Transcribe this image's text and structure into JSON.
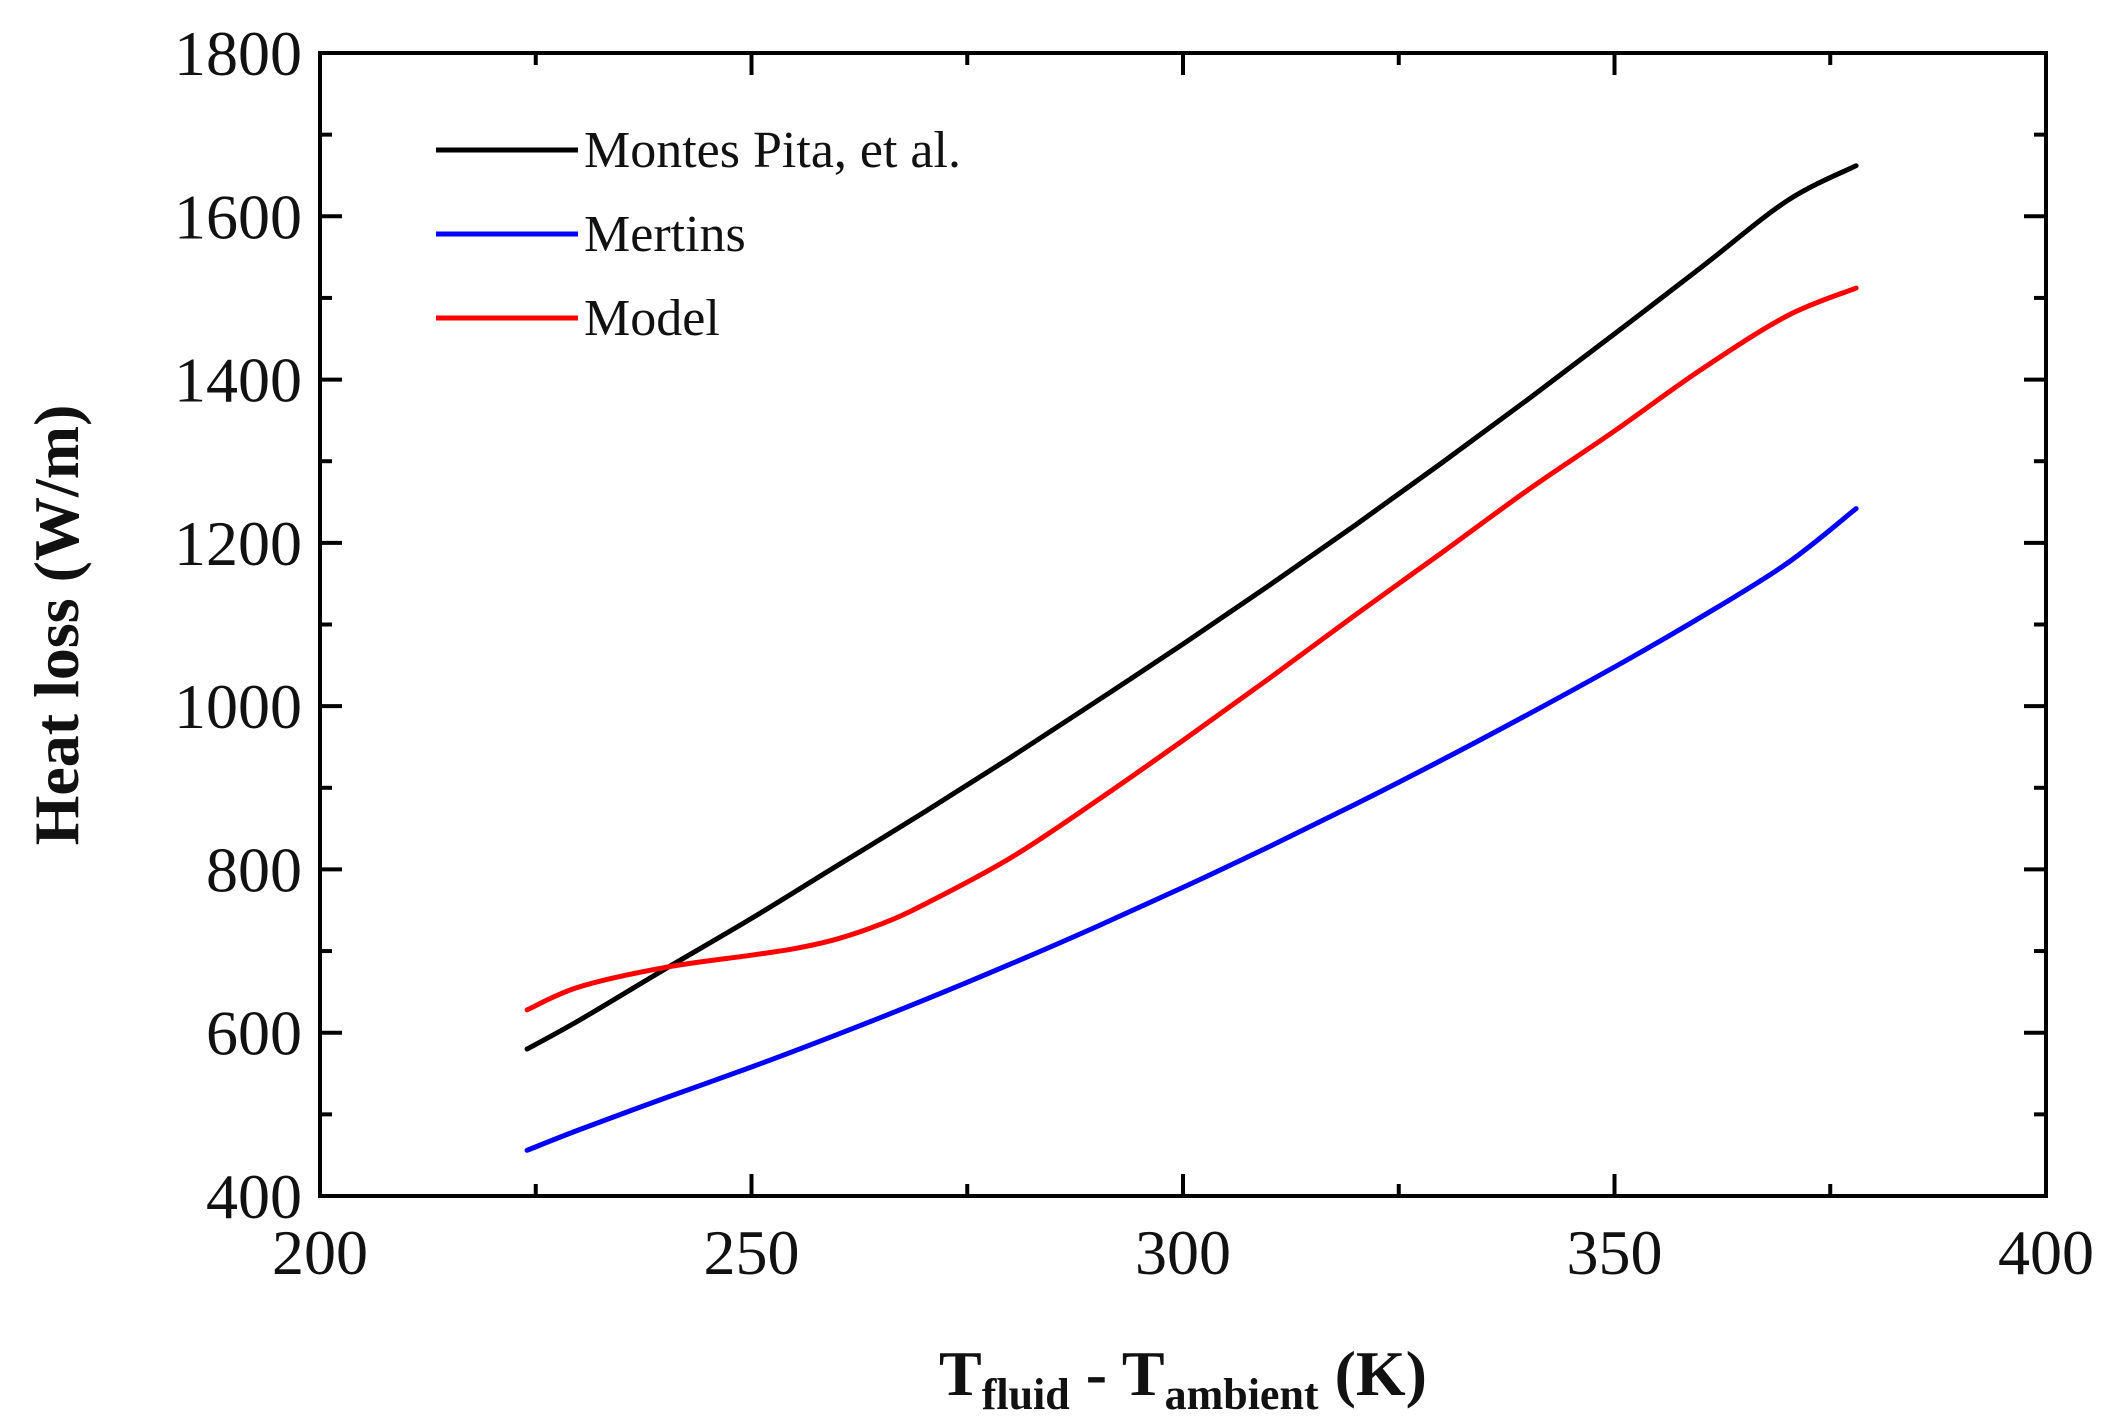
{
  "chart_data": {
    "type": "line",
    "xlabel": {
      "main1": "T",
      "sub1": "fluid",
      "mid": " - T",
      "sub2": "ambient",
      "tail": " (K)"
    },
    "ylabel": "Heat loss (W/m)",
    "xlim": [
      200,
      400
    ],
    "ylim": [
      400,
      1800
    ],
    "xticks": [
      200,
      250,
      300,
      350,
      400
    ],
    "xtick_labels": [
      "200",
      "250",
      "300",
      "350",
      "400"
    ],
    "yticks": [
      400,
      600,
      800,
      1000,
      1200,
      1400,
      1600,
      1800
    ],
    "ytick_labels": [
      "400",
      "600",
      "800",
      "1000",
      "1200",
      "1400",
      "1600",
      "1800"
    ],
    "legend_position": "top-left",
    "grid": false,
    "series": [
      {
        "name": "Montes Pita, et al.",
        "color": "#000000",
        "x": [
          224,
          230,
          240,
          250,
          260,
          270,
          280,
          290,
          300,
          310,
          320,
          330,
          340,
          350,
          360,
          370,
          378
        ],
        "y": [
          580,
          615,
          678,
          740,
          805,
          870,
          937,
          1006,
          1076,
          1148,
          1222,
          1298,
          1376,
          1456,
          1537,
          1619,
          1662
        ]
      },
      {
        "name": "Mertins",
        "color": "#0000ff",
        "x": [
          224,
          230,
          240,
          250,
          260,
          270,
          280,
          290,
          300,
          310,
          320,
          330,
          340,
          350,
          360,
          370,
          378
        ],
        "y": [
          456,
          481,
          520,
          558,
          598,
          640,
          684,
          730,
          778,
          828,
          880,
          934,
          990,
          1048,
          1109,
          1175,
          1242
        ]
      },
      {
        "name": "Model",
        "color": "#ff0000",
        "x": [
          224,
          230,
          240,
          250,
          255,
          260,
          265,
          270,
          280,
          290,
          300,
          310,
          320,
          330,
          340,
          350,
          360,
          370,
          378
        ],
        "y": [
          628,
          656,
          680,
          695,
          703,
          715,
          733,
          757,
          814,
          884,
          958,
          1034,
          1112,
          1188,
          1265,
          1337,
          1412,
          1478,
          1512
        ]
      }
    ]
  }
}
